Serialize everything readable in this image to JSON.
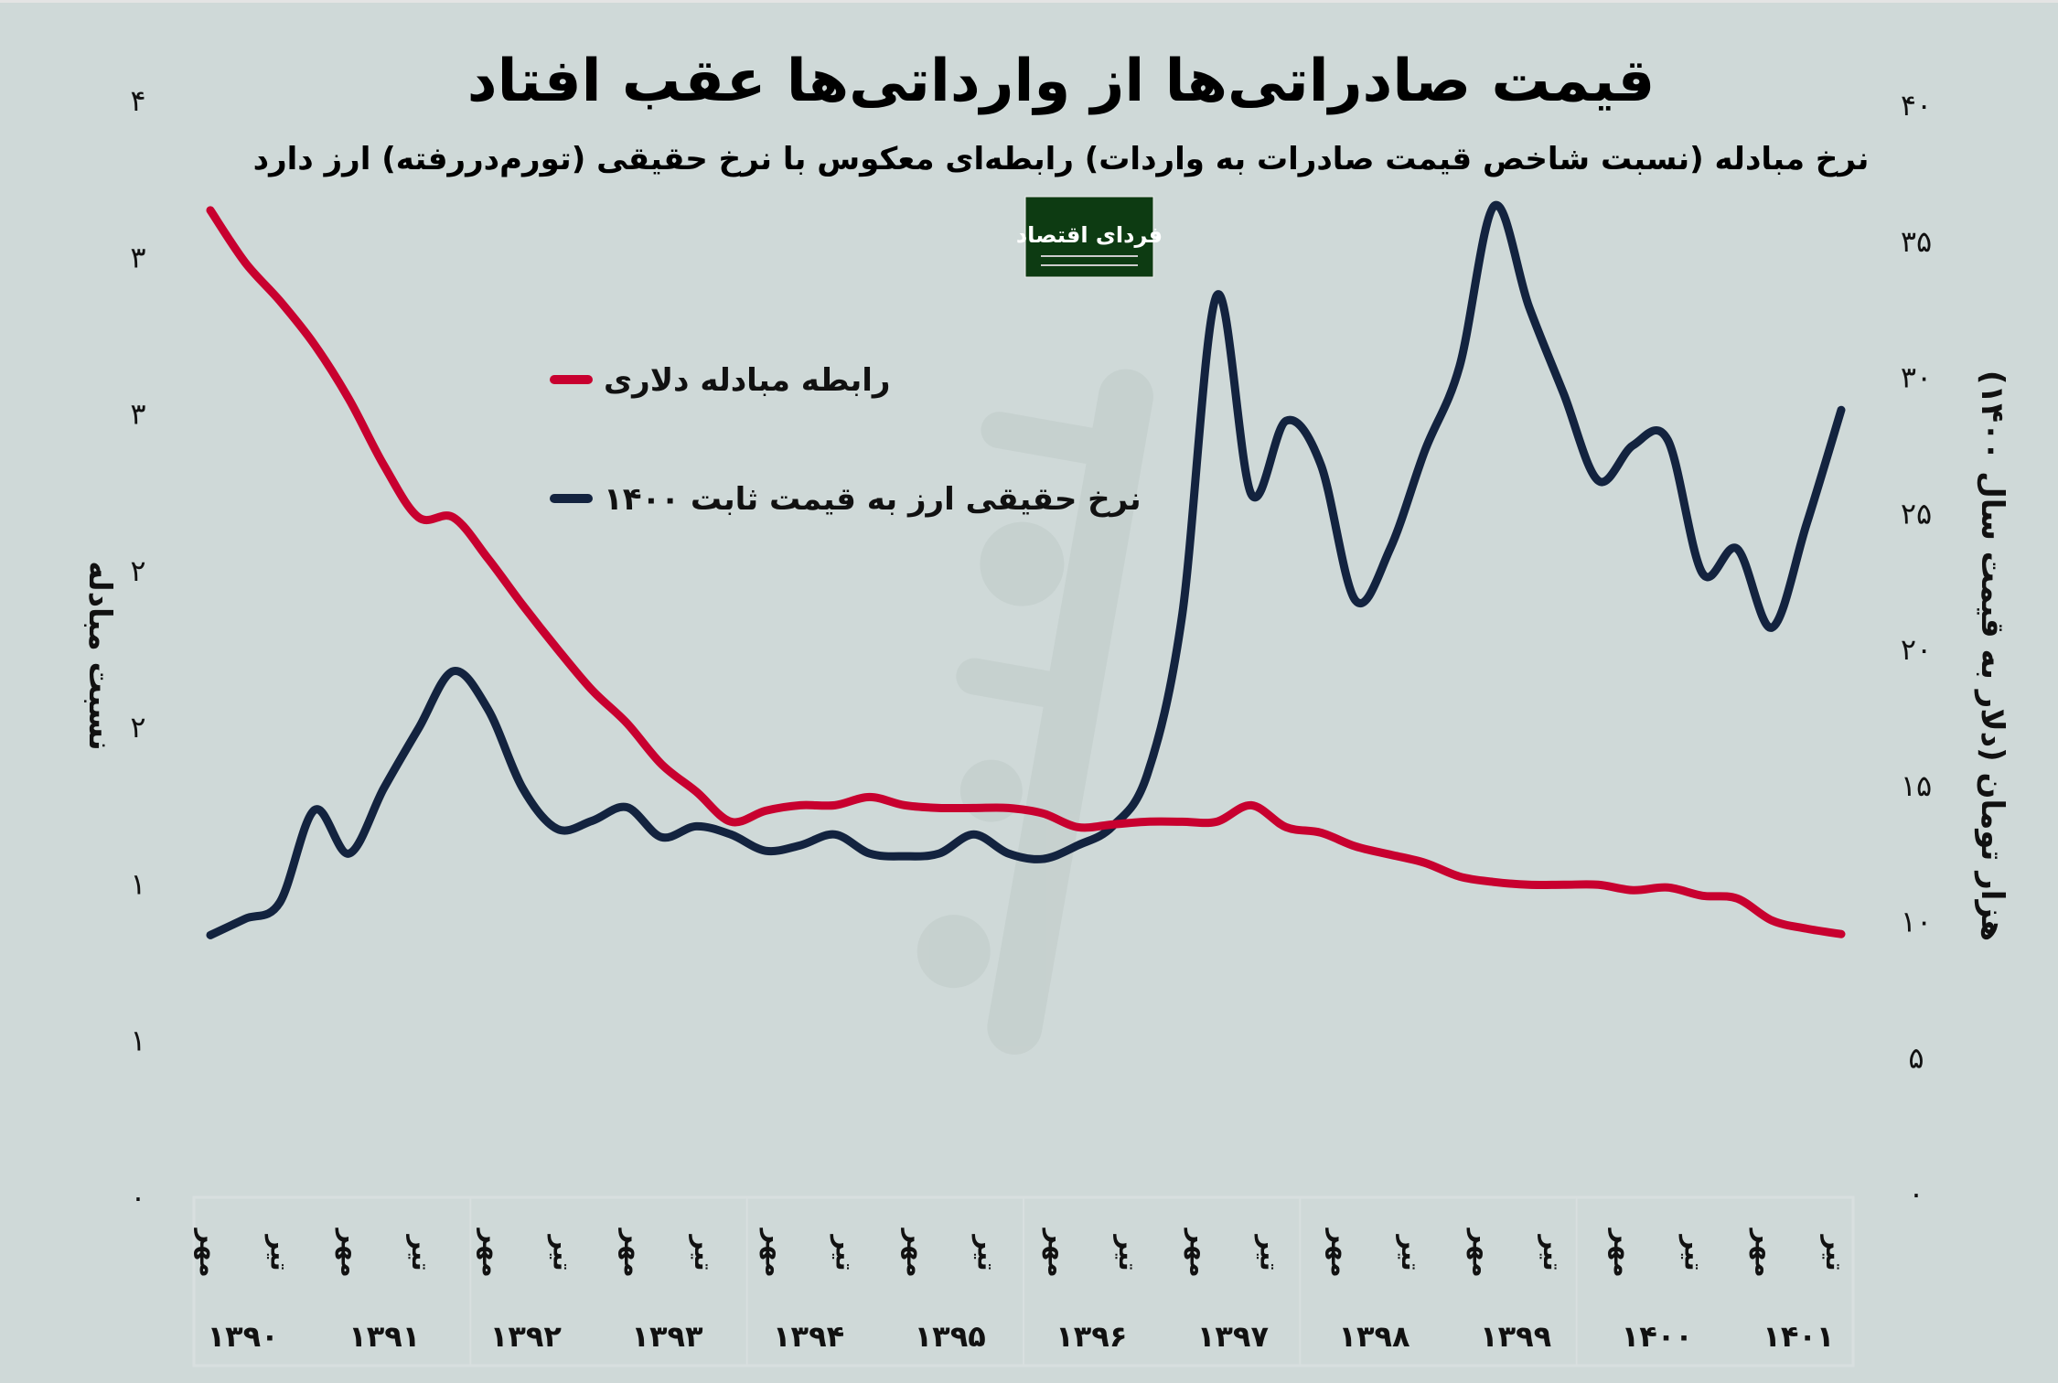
{
  "chart_data": {
    "type": "line",
    "title": "قیمت صادراتی‌ها از وارداتی‌ها عقب افتاد",
    "subtitle": "نرخ مبادله (نسبت شاخص قیمت صادرات به واردات) رابطه‌ای معکوس با نرخ حقیقی (تورم‌دررفته) ارز دارد",
    "logo_text": "فردای اقتصاد",
    "watermark_text": "فردای اقتصاد",
    "ylabel_left": "نسبت مبادله",
    "ylabel_right": "هزار تومان (دلار به قیمت سال ۱۴۰۰)",
    "ylim_left": [
      0,
      4
    ],
    "ylim_right": [
      0,
      40
    ],
    "left_ticks": [
      "۰",
      "۱",
      "۱",
      "۲",
      "۲",
      "۳",
      "۳",
      "۴"
    ],
    "right_ticks": [
      "۰",
      "۵",
      "۱۰",
      "۱۵",
      "۲۰",
      "۲۵",
      "۳۰",
      "۳۵",
      "۴۰"
    ],
    "month_labels": [
      "مهر",
      "تیر"
    ],
    "years": [
      "۱۳۹۰",
      "۱۳۹۱",
      "۱۳۹۲",
      "۱۳۹۳",
      "۱۳۹۴",
      "۱۳۹۵",
      "۱۳۹۶",
      "۱۳۹۷",
      "۱۳۹۸",
      "۱۳۹۹",
      "۱۴۰۰",
      "۱۴۰۱"
    ],
    "grid": false,
    "legend_position": "top-left",
    "series": [
      {
        "name": "رابطه مبادله دلاری",
        "axis": "left",
        "color": "#c8002f",
        "values": [
          3.6,
          3.41,
          3.27,
          3.11,
          2.91,
          2.67,
          2.48,
          2.48,
          2.33,
          2.16,
          2.0,
          1.85,
          1.73,
          1.58,
          1.48,
          1.37,
          1.41,
          1.43,
          1.43,
          1.46,
          1.43,
          1.42,
          1.42,
          1.42,
          1.4,
          1.35,
          1.36,
          1.37,
          1.37,
          1.37,
          1.43,
          1.35,
          1.33,
          1.28,
          1.25,
          1.22,
          1.17,
          1.15,
          1.14,
          1.14,
          1.14,
          1.12,
          1.13,
          1.1,
          1.09,
          1.01,
          0.98,
          0.96
        ]
      },
      {
        "name": "نرخ حقیقی ارز به قیمت ثابت ۱۴۰۰",
        "axis": "right",
        "color": "#13233f",
        "values": [
          9.5,
          10.1,
          10.7,
          14.1,
          12.5,
          14.9,
          17.1,
          19.2,
          17.8,
          14.9,
          13.4,
          13.7,
          14.2,
          13.1,
          13.5,
          13.2,
          12.6,
          12.8,
          13.2,
          12.5,
          12.4,
          12.5,
          13.2,
          12.5,
          12.3,
          12.8,
          13.5,
          15.4,
          21.2,
          33.0,
          25.7,
          28.4,
          26.8,
          21.8,
          23.7,
          27.3,
          30.4,
          36.3,
          32.6,
          29.4,
          26.2,
          27.5,
          27.7,
          22.8,
          23.7,
          20.8,
          24.6,
          28.8
        ]
      }
    ]
  }
}
